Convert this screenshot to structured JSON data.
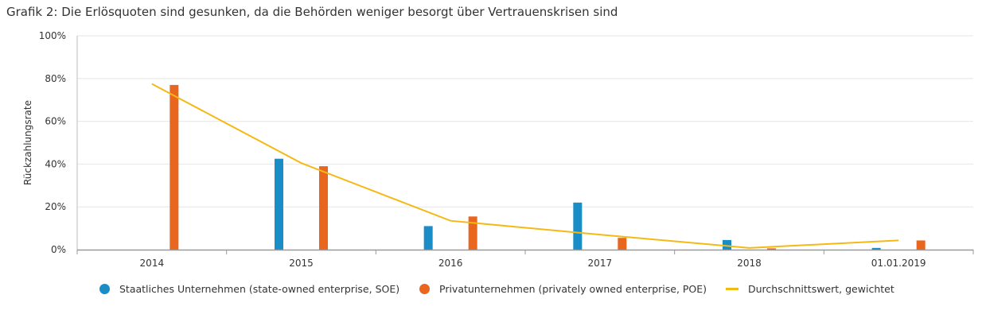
{
  "title": "Grafik 2: Die Erlösquoten sind gesunken, da die Behörden weniger besorgt über Vertrauenskrisen sind",
  "chart_data": {
    "type": "bar",
    "categories": [
      "2014",
      "2015",
      "2016",
      "2017",
      "2018",
      "01.01.2019"
    ],
    "ylabel": "Rückzahlungsrate",
    "ylim": [
      0,
      100
    ],
    "yticks": [
      0,
      20,
      40,
      60,
      80,
      100
    ],
    "ytick_labels": [
      "0%",
      "20%",
      "40%",
      "60%",
      "80%",
      "100%"
    ],
    "grid": true,
    "legend_position": "bottom",
    "series": [
      {
        "name": "Staatliches Unternehmen (state-owned enterprise, SOE)",
        "type": "bar",
        "color": "#1a8cc6",
        "values": [
          0,
          42.5,
          11,
          22,
          4.5,
          0.8
        ]
      },
      {
        "name": "Privatunternehmen (privately owned enterprise, POE)",
        "type": "bar",
        "color": "#e8661e",
        "values": [
          77,
          39,
          15.5,
          5.5,
          0.6,
          4.3
        ]
      },
      {
        "name": "Durchschnittswert, gewichtet",
        "type": "line",
        "color": "#f5b915",
        "values": [
          77.5,
          40.5,
          13.5,
          7,
          0.8,
          4.3
        ]
      }
    ]
  }
}
